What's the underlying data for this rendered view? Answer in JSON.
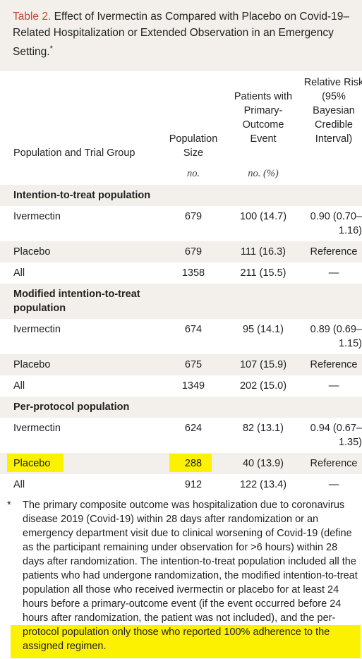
{
  "caption": {
    "number": "Table 2.",
    "text": "Effect of Ivermectin as Compared with Placebo on Covid-19–Related Hospitalization or Extended Observation in an Emergency Setting.",
    "marker": "*"
  },
  "columns": [
    {
      "header": "Population and Trial Group",
      "unit": ""
    },
    {
      "header": "Population Size",
      "unit": "no."
    },
    {
      "header": "Patients with Primary-Outcome Event",
      "unit": "no. (%)"
    },
    {
      "header": "Relative Risk (95% Bayesian Credible Interval)",
      "unit": ""
    }
  ],
  "groups": [
    {
      "title": "Intention-to-treat population",
      "rows": [
        {
          "group": "Ivermectin",
          "size": "679",
          "events": "100 (14.7)",
          "rr": "0.90 (0.70–1.16)"
        },
        {
          "group": "Placebo",
          "size": "679",
          "events": "111 (16.3)",
          "rr": "Reference"
        },
        {
          "group": "All",
          "size": "1358",
          "events": "211 (15.5)",
          "rr": "—"
        }
      ]
    },
    {
      "title": "Modified intention-to-treat population",
      "rows": [
        {
          "group": "Ivermectin",
          "size": "674",
          "events": "95 (14.1)",
          "rr": "0.89 (0.69–1.15)"
        },
        {
          "group": "Placebo",
          "size": "675",
          "events": "107 (15.9)",
          "rr": "Reference"
        },
        {
          "group": "All",
          "size": "1349",
          "events": "202 (15.0)",
          "rr": "—"
        }
      ]
    },
    {
      "title": "Per-protocol population",
      "rows": [
        {
          "group": "Ivermectin",
          "size": "624",
          "events": "82 (13.1)",
          "rr": "0.94 (0.67–1.35)"
        },
        {
          "group": "Placebo",
          "size": "288",
          "events": "40 (13.9)",
          "rr": "Reference"
        },
        {
          "group": "All",
          "size": "912",
          "events": "122 (13.4)",
          "rr": "—"
        }
      ]
    }
  ],
  "footnote": {
    "marker": "*",
    "text": "The primary composite outcome was hospitalization due to coronavirus disease 2019 (Covid-19) within 28 days after randomization or an emergency department visit due to clinical worsening of Covid-19 (define as the participant remaining under observation for >6 hours) within 28 days after randomization. The intention-to-treat population included all the patients who had undergone randomization, the modified intention-to-treat population all those who received ivermectin or placebo for at least 24 hours before a primary-outcome event (if the event occurred before 24 hours after randomization, the patient was not included), and the per-protocol population only those who reported 100% adherence to the assigned regimen."
  },
  "colors": {
    "caption_bg": "#f3f0eb",
    "caption_number": "#c8442a",
    "highlight": "#fbf100"
  }
}
